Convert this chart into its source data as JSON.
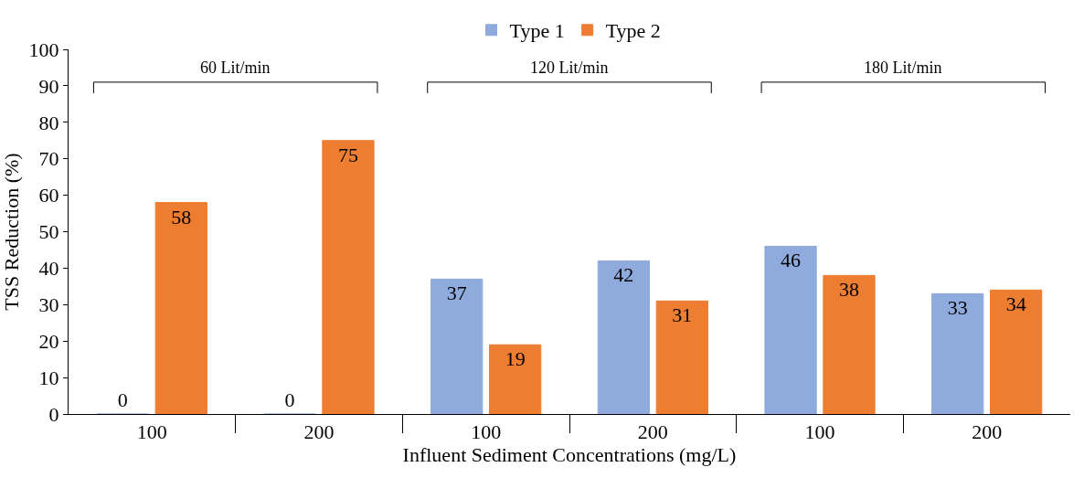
{
  "chart_data": {
    "type": "bar",
    "xlabel": "Influent Sediment Concentrations (mg/L)",
    "ylabel": "TSS Reduction (%)",
    "categories": [
      "100",
      "200",
      "100",
      "200",
      "100",
      "200"
    ],
    "series": [
      {
        "name": "Type 1",
        "color": "#8faadc",
        "values": [
          0,
          0,
          37,
          42,
          46,
          33
        ]
      },
      {
        "name": "Type 2",
        "color": "#ed7d31",
        "values": [
          58,
          75,
          19,
          31,
          38,
          34
        ]
      }
    ],
    "ylim": [
      0,
      100
    ],
    "yticks": [
      0,
      10,
      20,
      30,
      40,
      50,
      60,
      70,
      80,
      90,
      100
    ],
    "data_labels": true,
    "legend": "top",
    "annotations": [
      "60 Lit/min",
      "120 Lit/min",
      "180 Lit/min"
    ]
  }
}
